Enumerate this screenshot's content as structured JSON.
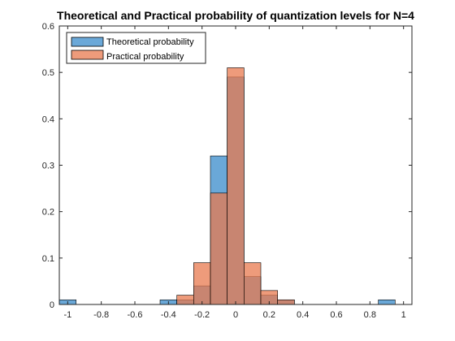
{
  "chart_data": {
    "type": "bar",
    "title": "Theoretical and Practical probability of quantization levels for N=4",
    "xlabel": "",
    "ylabel": "",
    "xlim": [
      -1.05,
      1.05
    ],
    "ylim": [
      0,
      0.6
    ],
    "bin_width": 0.1,
    "xticks": [
      "-1",
      "-0.8",
      "-0.6",
      "-0.4",
      "-0.2",
      "0",
      "0.2",
      "0.4",
      "0.6",
      "0.8",
      "1"
    ],
    "yticks": [
      "0",
      "0.1",
      "0.2",
      "0.3",
      "0.4",
      "0.5",
      "0.6"
    ],
    "x": [
      -1.0,
      -0.9,
      -0.8,
      -0.7,
      -0.6,
      -0.5,
      -0.4,
      -0.3,
      -0.2,
      -0.1,
      0.0,
      0.1,
      0.2,
      0.3,
      0.4,
      0.5,
      0.6,
      0.7,
      0.8,
      0.9,
      1.0
    ],
    "series": [
      {
        "name": "Theoretical probability",
        "color": "#5a9fd4",
        "opacity": 0.9,
        "values": [
          0.01,
          0,
          0,
          0,
          0,
          0,
          0.01,
          0.01,
          0.04,
          0.32,
          0.49,
          0.06,
          0.02,
          0.01,
          0,
          0,
          0,
          0,
          0,
          0.01,
          0
        ]
      },
      {
        "name": "Practical probability",
        "color": "#e8794f",
        "opacity": 0.75,
        "values": [
          0,
          0,
          0,
          0,
          0,
          0,
          0,
          0.02,
          0.09,
          0.24,
          0.51,
          0.09,
          0.03,
          0.01,
          0,
          0,
          0,
          0,
          0,
          0,
          0
        ]
      }
    ],
    "grid": false,
    "legend_position": "top-left"
  }
}
